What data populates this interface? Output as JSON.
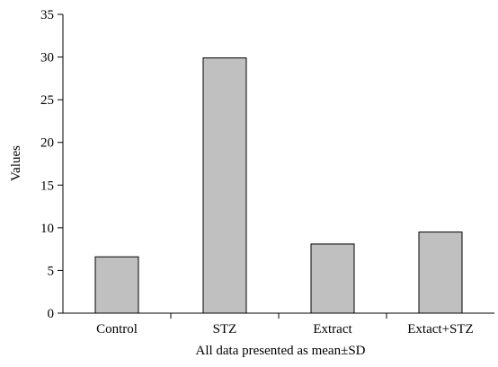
{
  "chart_data": {
    "type": "bar",
    "categories": [
      "Control",
      "STZ",
      "Extract",
      "Extact+STZ"
    ],
    "values": [
      6.6,
      29.9,
      8.1,
      9.5
    ],
    "title": "",
    "xlabel": "All data presented as mean±SD",
    "ylabel": "Values",
    "ylim": [
      0,
      35
    ],
    "yticks": [
      0,
      5,
      10,
      15,
      20,
      25,
      30,
      35
    ],
    "grid": false,
    "legend": "none",
    "colors": {
      "bar_fill": "#c0c0c0",
      "bar_stroke": "#000000",
      "axis": "#000000"
    }
  }
}
